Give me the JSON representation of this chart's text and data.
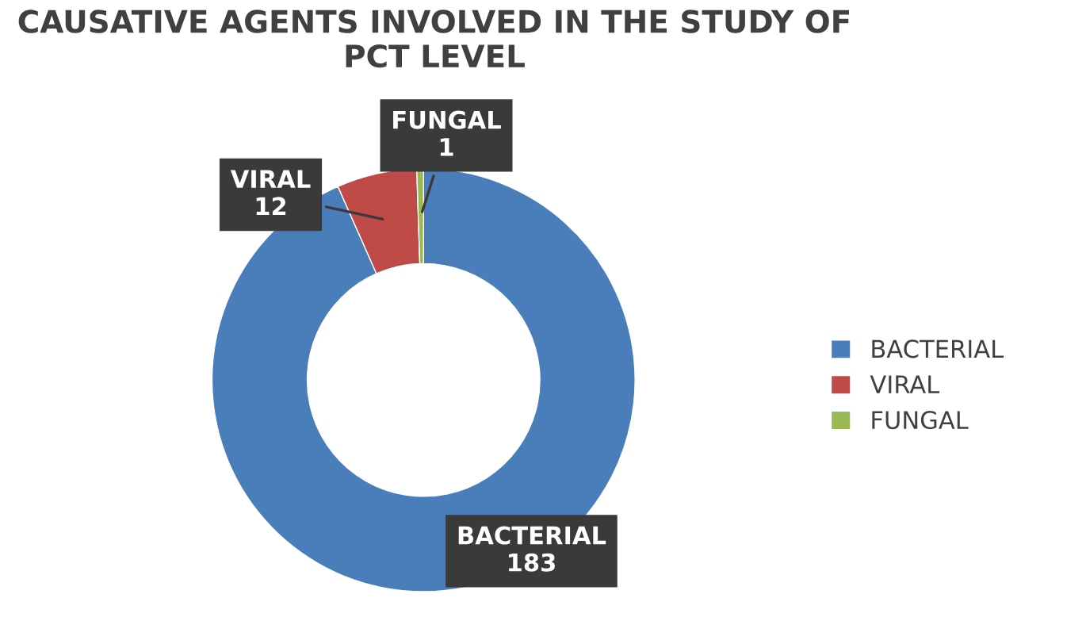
{
  "chart_data": {
    "type": "donut",
    "title": "CAUSATIVE AGENTS INVOLVED IN THE STUDY OF PCT LEVEL",
    "categories": [
      "BACTERIAL",
      "VIRAL",
      "FUNGAL"
    ],
    "values": [
      183,
      12,
      1
    ],
    "colors": [
      "#4a7ebb",
      "#be4b48",
      "#98b954"
    ],
    "data_labels": true,
    "legend": "right"
  }
}
